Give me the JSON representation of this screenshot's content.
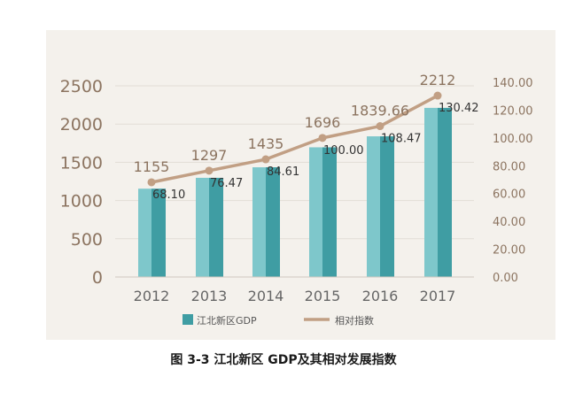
{
  "caption": "图 3-3  江北新区 GDP及其相对发展指数",
  "chart_data": {
    "type": "bar",
    "categories": [
      "2012",
      "2013",
      "2014",
      "2015",
      "2016",
      "2017"
    ],
    "series": [
      {
        "name": "江北新区GDP",
        "type": "bar",
        "axis": "left",
        "values": [
          1155,
          1297,
          1435,
          1696,
          1839.66,
          2212
        ],
        "labels": [
          "1155",
          "1297",
          "1435",
          "1696",
          "1839.66",
          "2212"
        ]
      },
      {
        "name": "相对指数",
        "type": "line",
        "axis": "right",
        "values": [
          68.1,
          76.47,
          84.61,
          100.0,
          108.47,
          130.42
        ],
        "labels": [
          "68.10",
          "76.47",
          "84.61",
          "100.00",
          "108.47",
          "130.42"
        ]
      }
    ],
    "y_left": {
      "min": 0,
      "max": 2500,
      "ticks": [
        "0",
        "500",
        "1000",
        "1500",
        "2000",
        "2500"
      ]
    },
    "y_right": {
      "min": 0,
      "max": 140,
      "ticks": [
        "0.00",
        "20.00",
        "40.00",
        "60.00",
        "80.00",
        "100.00",
        "120.00",
        "140.00"
      ]
    },
    "legend_position": "bottom",
    "colors": {
      "bar_front": "#7ec7cb",
      "bar_side": "#3f9da3",
      "line": "#c19f84",
      "axis_text": "#8c7460",
      "year_text": "#666666",
      "gridline": "#e2ddd6"
    }
  }
}
